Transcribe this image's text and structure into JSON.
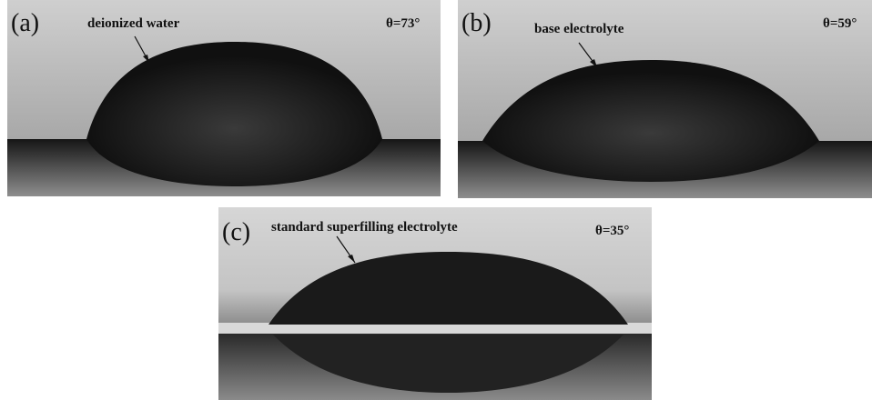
{
  "panels": [
    {
      "label": "(a)",
      "caption": "deionized water",
      "angle": "θ=73°"
    },
    {
      "label": "(b)",
      "caption": "base electrolyte",
      "angle": "θ=59°"
    },
    {
      "label": "(c)",
      "caption": "standard superfilling electrolyte",
      "angle": "θ=35°"
    }
  ]
}
